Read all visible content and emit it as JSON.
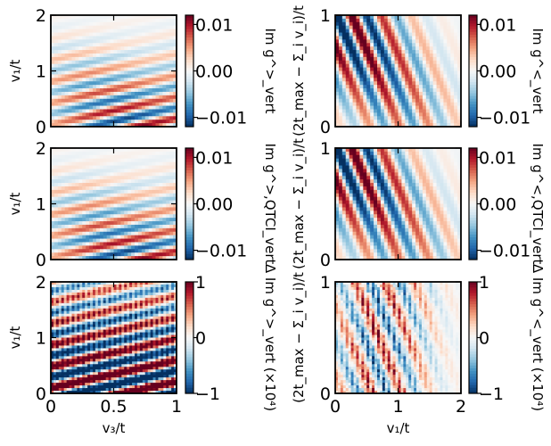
{
  "chart_data": [
    {
      "type": "heatmap",
      "id": "p00",
      "variant": "smooth",
      "title": "",
      "xlim": [
        0,
        1
      ],
      "ylim": [
        0,
        2
      ],
      "xticks": [],
      "yticks": [
        "0",
        "1",
        "2"
      ],
      "xlabel": "",
      "ylabel": "v₁/t",
      "colorbar": {
        "ticks": [
          "0.01",
          "0.00",
          "−0.01"
        ],
        "label": "Im g^>_vert",
        "range": [
          -0.012,
          0.012
        ]
      }
    },
    {
      "type": "heatmap",
      "id": "p01",
      "variant": "diag",
      "title": "",
      "xlim": [
        0,
        2
      ],
      "ylim": [
        0,
        1
      ],
      "xticks": [],
      "yticks": [
        "0",
        "1"
      ],
      "xlabel": "",
      "ylabel": "(2t_max − Σ_i v_i)/t",
      "colorbar": {
        "ticks": [
          "0.01",
          "0.00",
          "−0.01"
        ],
        "label": "Im g^<_vert",
        "range": [
          -0.012,
          0.012
        ]
      }
    },
    {
      "type": "heatmap",
      "id": "p10",
      "variant": "smooth",
      "title": "",
      "xlim": [
        0,
        1
      ],
      "ylim": [
        0,
        2
      ],
      "xticks": [],
      "yticks": [
        "0",
        "1",
        "2"
      ],
      "xlabel": "",
      "ylabel": "v₁/t",
      "colorbar": {
        "ticks": [
          "0.01",
          "0.00",
          "−0.01"
        ],
        "label": "Im g^>,QTCI_vert",
        "range": [
          -0.012,
          0.012
        ]
      }
    },
    {
      "type": "heatmap",
      "id": "p11",
      "variant": "diag",
      "title": "",
      "xlim": [
        0,
        2
      ],
      "ylim": [
        0,
        1
      ],
      "xticks": [],
      "yticks": [
        "0",
        "1"
      ],
      "xlabel": "",
      "ylabel": "(2t_max − Σ_i v_i)/t",
      "colorbar": {
        "ticks": [
          "0.01",
          "0.00",
          "−0.01"
        ],
        "label": "Im g^<,QTCI_vert",
        "range": [
          -0.012,
          0.012
        ]
      }
    },
    {
      "type": "heatmap",
      "id": "p20",
      "variant": "diffA",
      "title": "",
      "xlim": [
        0,
        1
      ],
      "ylim": [
        0,
        2
      ],
      "xticks": [
        "0",
        "0.5",
        "1"
      ],
      "yticks": [
        "0",
        "1",
        "2"
      ],
      "xlabel": "v₃/t",
      "ylabel": "v₁/t",
      "colorbar": {
        "ticks": [
          "1",
          "0",
          "−1"
        ],
        "label": "Δ Im g^>_vert (×10⁴)",
        "range": [
          -1,
          1
        ]
      }
    },
    {
      "type": "heatmap",
      "id": "p21",
      "variant": "diffB",
      "title": "",
      "xlim": [
        0,
        2
      ],
      "ylim": [
        0,
        1
      ],
      "xticks": [
        "0",
        "1",
        "2"
      ],
      "yticks": [
        "0",
        "1"
      ],
      "xlabel": "v₁/t",
      "ylabel": "(2t_max − Σ_i v_i)/t",
      "colorbar": {
        "ticks": [
          "1",
          "0",
          "−1"
        ],
        "label": "Δ Im g^<_vert (×10⁴)",
        "range": [
          -1,
          1
        ]
      }
    }
  ],
  "colormap": {
    "name": "RdBu_r",
    "stops": [
      "#053061",
      "#2166ac",
      "#4393c3",
      "#92c5de",
      "#d1e5f0",
      "#f7f7f7",
      "#fddbc7",
      "#f4a582",
      "#d6604d",
      "#b2182b",
      "#67001f"
    ]
  }
}
